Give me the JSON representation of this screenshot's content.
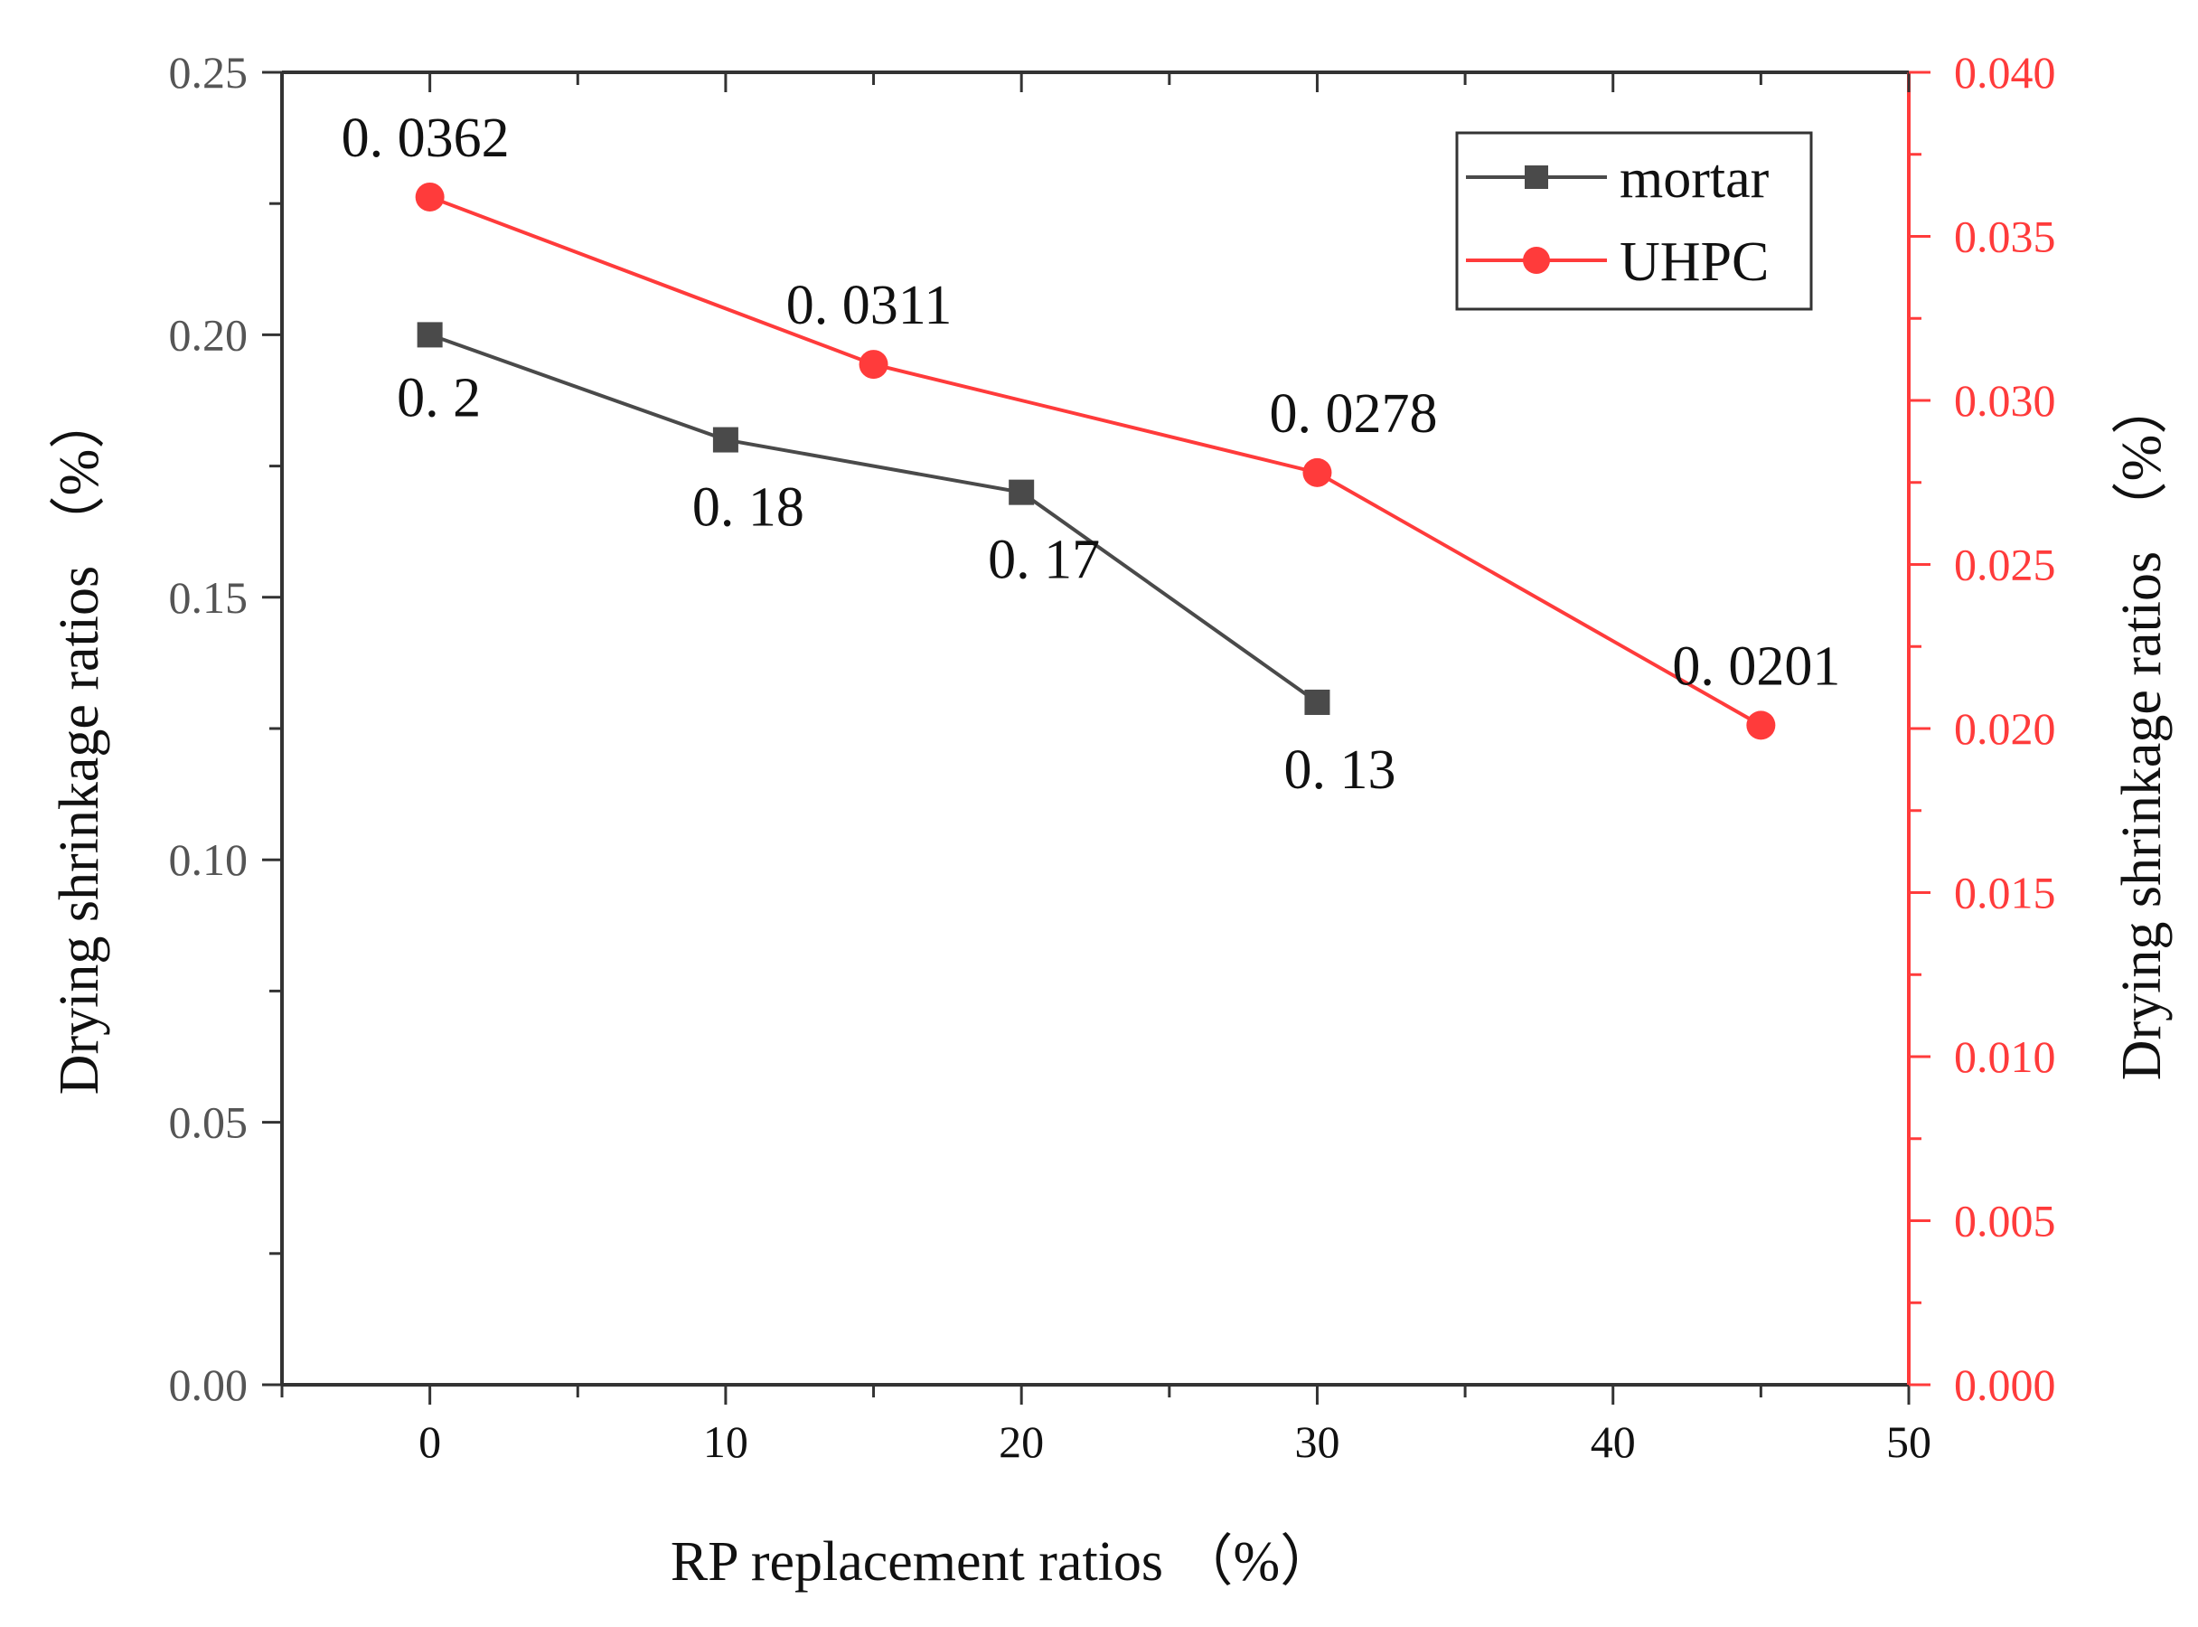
{
  "chart_data": {
    "type": "line",
    "title": "",
    "xlabel": "RP replacement ratios （%）",
    "ylabel_left": "Drying shrinkage ratios （%）",
    "ylabel_right": "Drying shrinkage ratios （%）",
    "xlim": [
      -5,
      50
    ],
    "ylim_left": [
      0,
      0.25
    ],
    "ylim_right": [
      0,
      0.04
    ],
    "x_ticks": [
      "0",
      "10",
      "20",
      "30",
      "40",
      "50"
    ],
    "y_left_ticks": [
      "0.00",
      "0.05",
      "0.10",
      "0.15",
      "0.20",
      "0.25"
    ],
    "y_right_ticks": [
      "0.000",
      "0.005",
      "0.010",
      "0.015",
      "0.020",
      "0.025",
      "0.030",
      "0.035",
      "0.040"
    ],
    "grid": false,
    "legend_position": "top-right",
    "series": [
      {
        "name": "mortar",
        "axis": "left",
        "color": "#4a4a4a",
        "marker": "square",
        "x": [
          0,
          10,
          20,
          30
        ],
        "values": [
          0.2,
          0.18,
          0.17,
          0.13
        ],
        "labels": [
          "0. 2",
          "0. 18",
          "0. 17",
          "0. 13"
        ]
      },
      {
        "name": "UHPC",
        "axis": "right",
        "color": "#ff3b3b",
        "marker": "circle",
        "x": [
          0,
          15,
          30,
          45
        ],
        "values": [
          0.0362,
          0.0311,
          0.0278,
          0.0201
        ],
        "labels": [
          "0. 0362",
          "0. 0311",
          "0. 0278",
          "0. 0201"
        ]
      }
    ]
  },
  "colors": {
    "left_axis": "#333333",
    "right_axis": "#ff3b3b",
    "tick_text_left": "#555555",
    "tick_text_right": "#ff3b3b"
  }
}
